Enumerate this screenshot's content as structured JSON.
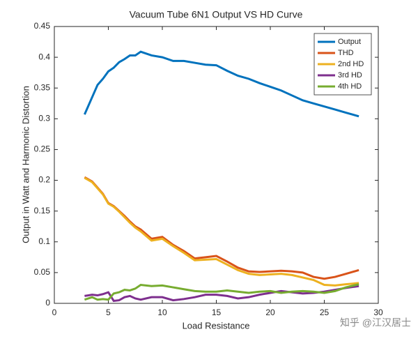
{
  "chart_data": {
    "type": "line",
    "title": "Vacuum Tube 6N1 Output VS HD Curve",
    "x_label": "Load Resistance",
    "y_label": "Output in Watt and Harmonic Distortion",
    "watermark": "知乎 @江汉居士",
    "x": [
      2.8,
      3.5,
      4,
      4.5,
      5,
      5.5,
      6,
      6.5,
      7,
      7.5,
      8,
      9,
      10,
      11,
      12,
      13,
      14,
      15,
      16,
      17,
      18,
      19,
      20,
      21,
      22,
      23,
      24,
      25,
      26,
      27,
      28.2
    ],
    "series": [
      {
        "name": "Output",
        "color": "#0072BD",
        "values": [
          0.307,
          0.335,
          0.355,
          0.365,
          0.377,
          0.383,
          0.392,
          0.397,
          0.403,
          0.403,
          0.409,
          0.403,
          0.4,
          0.394,
          0.394,
          0.391,
          0.388,
          0.387,
          0.378,
          0.37,
          0.365,
          0.358,
          0.352,
          0.346,
          0.338,
          0.33,
          0.325,
          0.32,
          0.315,
          0.31,
          0.304
        ]
      },
      {
        "name": "THD",
        "color": "#D95319",
        "values": [
          0.205,
          0.198,
          0.188,
          0.178,
          0.163,
          0.158,
          0.15,
          0.142,
          0.133,
          0.125,
          0.12,
          0.105,
          0.108,
          0.095,
          0.085,
          0.073,
          0.075,
          0.077,
          0.068,
          0.058,
          0.052,
          0.051,
          0.052,
          0.053,
          0.052,
          0.05,
          0.043,
          0.04,
          0.043,
          0.048,
          0.054
        ]
      },
      {
        "name": "2nd HD",
        "color": "#EDB120",
        "values": [
          0.204,
          0.197,
          0.187,
          0.177,
          0.162,
          0.157,
          0.149,
          0.14,
          0.131,
          0.123,
          0.117,
          0.102,
          0.105,
          0.093,
          0.082,
          0.07,
          0.071,
          0.072,
          0.063,
          0.054,
          0.048,
          0.046,
          0.047,
          0.048,
          0.046,
          0.042,
          0.038,
          0.03,
          0.029,
          0.031,
          0.033
        ]
      },
      {
        "name": "3rd HD",
        "color": "#7E2F8E",
        "values": [
          0.012,
          0.014,
          0.013,
          0.015,
          0.018,
          0.004,
          0.005,
          0.01,
          0.012,
          0.008,
          0.006,
          0.01,
          0.01,
          0.005,
          0.007,
          0.01,
          0.014,
          0.014,
          0.012,
          0.008,
          0.01,
          0.014,
          0.017,
          0.02,
          0.018,
          0.016,
          0.017,
          0.019,
          0.022,
          0.025,
          0.028
        ]
      },
      {
        "name": "4th HD",
        "color": "#77AC30",
        "values": [
          0.006,
          0.01,
          0.006,
          0.007,
          0.006,
          0.016,
          0.018,
          0.022,
          0.021,
          0.024,
          0.03,
          0.028,
          0.029,
          0.026,
          0.023,
          0.02,
          0.019,
          0.019,
          0.021,
          0.019,
          0.017,
          0.019,
          0.02,
          0.017,
          0.019,
          0.02,
          0.019,
          0.017,
          0.02,
          0.026,
          0.031
        ]
      }
    ],
    "xlim": [
      0,
      30
    ],
    "xticks": [
      0,
      5,
      10,
      15,
      20,
      25,
      30
    ],
    "ylim": [
      0,
      0.45
    ],
    "yticks": [
      0,
      0.05,
      0.1,
      0.15,
      0.2,
      0.25,
      0.3,
      0.35,
      0.4,
      0.45
    ],
    "grid": false,
    "legend": "northeast"
  }
}
